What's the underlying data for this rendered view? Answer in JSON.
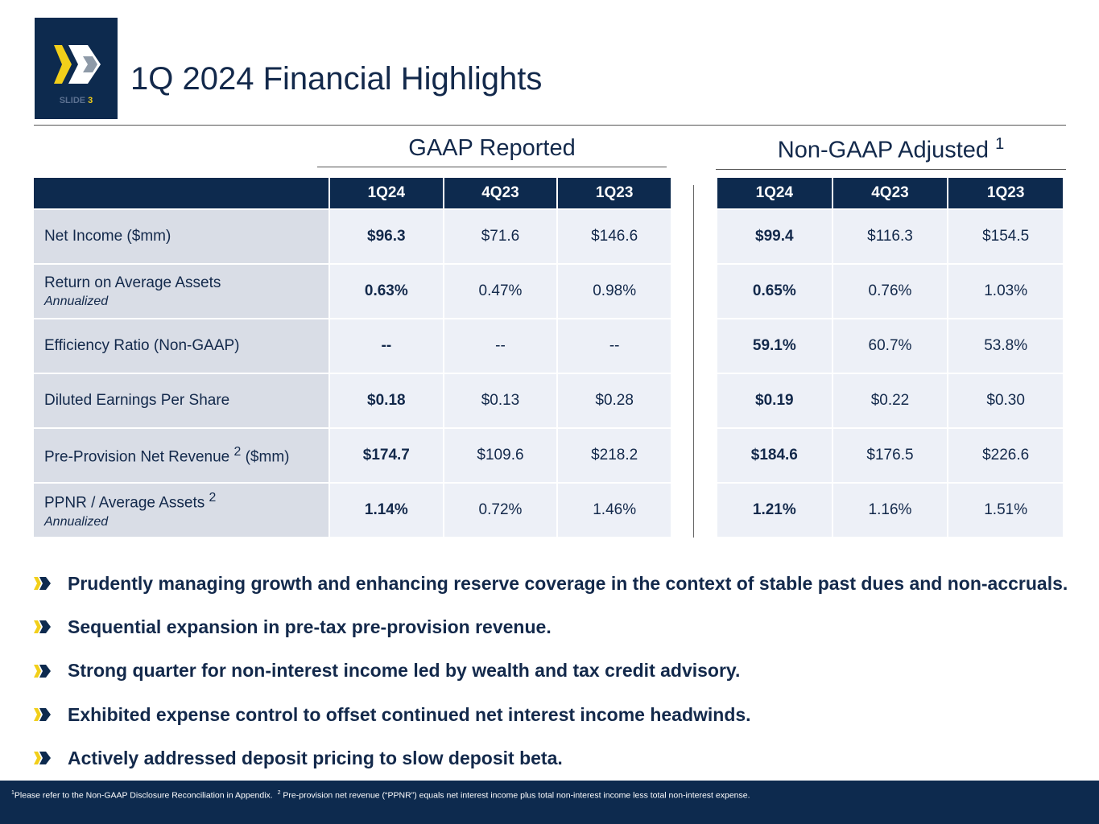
{
  "header": {
    "title": "1Q 2024 Financial Highlights",
    "slide_label": "SLIDE",
    "slide_number": "3"
  },
  "sections": {
    "gaap": "GAAP Reported",
    "nongaap": "Non-GAAP Adjusted",
    "nongaap_sup": "1"
  },
  "columns": [
    "1Q24",
    "4Q23",
    "1Q23"
  ],
  "rows": [
    {
      "label": "Net Income ($mm)",
      "sub": "",
      "sup": "",
      "suffix": "",
      "gaap": [
        "$96.3",
        "$71.6",
        "$146.6"
      ],
      "adj": [
        "$99.4",
        "$116.3",
        "$154.5"
      ]
    },
    {
      "label": "Return on Average Assets",
      "sub": "Annualized",
      "sup": "",
      "suffix": "",
      "gaap": [
        "0.63%",
        "0.47%",
        "0.98%"
      ],
      "adj": [
        "0.65%",
        "0.76%",
        "1.03%"
      ]
    },
    {
      "label": "Efficiency Ratio (Non-GAAP)",
      "sub": "",
      "sup": "",
      "suffix": "",
      "gaap": [
        "--",
        "--",
        "--"
      ],
      "adj": [
        "59.1%",
        "60.7%",
        "53.8%"
      ]
    },
    {
      "label": "Diluted Earnings Per Share",
      "sub": "",
      "sup": "",
      "suffix": "",
      "gaap": [
        "$0.18",
        "$0.13",
        "$0.28"
      ],
      "adj": [
        "$0.19",
        "$0.22",
        "$0.30"
      ]
    },
    {
      "label": "Pre-Provision Net Revenue ",
      "sub": "",
      "sup": "2",
      "suffix": " ($mm)",
      "gaap": [
        "$174.7",
        "$109.6",
        "$218.2"
      ],
      "adj": [
        "$184.6",
        "$176.5",
        "$226.6"
      ]
    },
    {
      "label": "PPNR / Average Assets ",
      "sub": "Annualized",
      "sup": "2",
      "suffix": "",
      "gaap": [
        "1.14%",
        "0.72%",
        "1.46%"
      ],
      "adj": [
        "1.21%",
        "1.16%",
        "1.51%"
      ]
    }
  ],
  "bullets": [
    "Prudently managing growth and enhancing reserve coverage in the context of stable past dues and non-accruals.",
    "Sequential expansion in pre-tax pre-provision revenue.",
    "Strong quarter for non-interest income led by wealth and tax credit advisory.",
    "Exhibited expense control to offset continued net interest income headwinds.",
    "Actively addressed deposit pricing to slow deposit beta."
  ],
  "footer": {
    "sup1": "1",
    "note1": "Please refer to the Non-GAAP Disclosure Reconciliation in Appendix.",
    "sup2": "2",
    "note2": "Pre-provision net revenue (“PPNR”) equals net interest income plus total non-interest income less total non-interest expense."
  },
  "colors": {
    "navy": "#0d2a4e",
    "yellow": "#f2cf1a",
    "label_bg": "#d9dde6",
    "cell_bg": "#edf0f7"
  }
}
